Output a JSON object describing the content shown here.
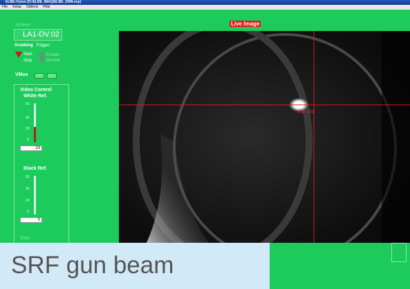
{
  "window": {
    "title": "ELBE-Vision [D:\\ELBE_IMAQ\\ELBE_2008.evp]"
  },
  "menu": [
    "File",
    "Setup",
    "Options",
    "Help"
  ],
  "left_panel": {
    "screen_label": "Screen",
    "screen_value": "LA1-DV.02",
    "grabbing": "Grabbing",
    "trigger": "Trigger",
    "start": "Start",
    "stop": "Stop",
    "enable": "Enable",
    "disable": "Disable",
    "vmux": "VMux",
    "video_control": {
      "title": "Video Control",
      "white_ref": {
        "label": "White Ref.",
        "ticks": [
          "63",
          "40",
          "20",
          "0"
        ],
        "value": "23"
      },
      "black_ref": {
        "label": "Black Ref.",
        "ticks": [
          "63",
          "40",
          "20",
          "0"
        ],
        "value": "0"
      },
      "gain": "Gain"
    }
  },
  "image": {
    "title": "Live Image",
    "crosshair_label": "503 / 203"
  },
  "caption": "SRF gun beam"
}
